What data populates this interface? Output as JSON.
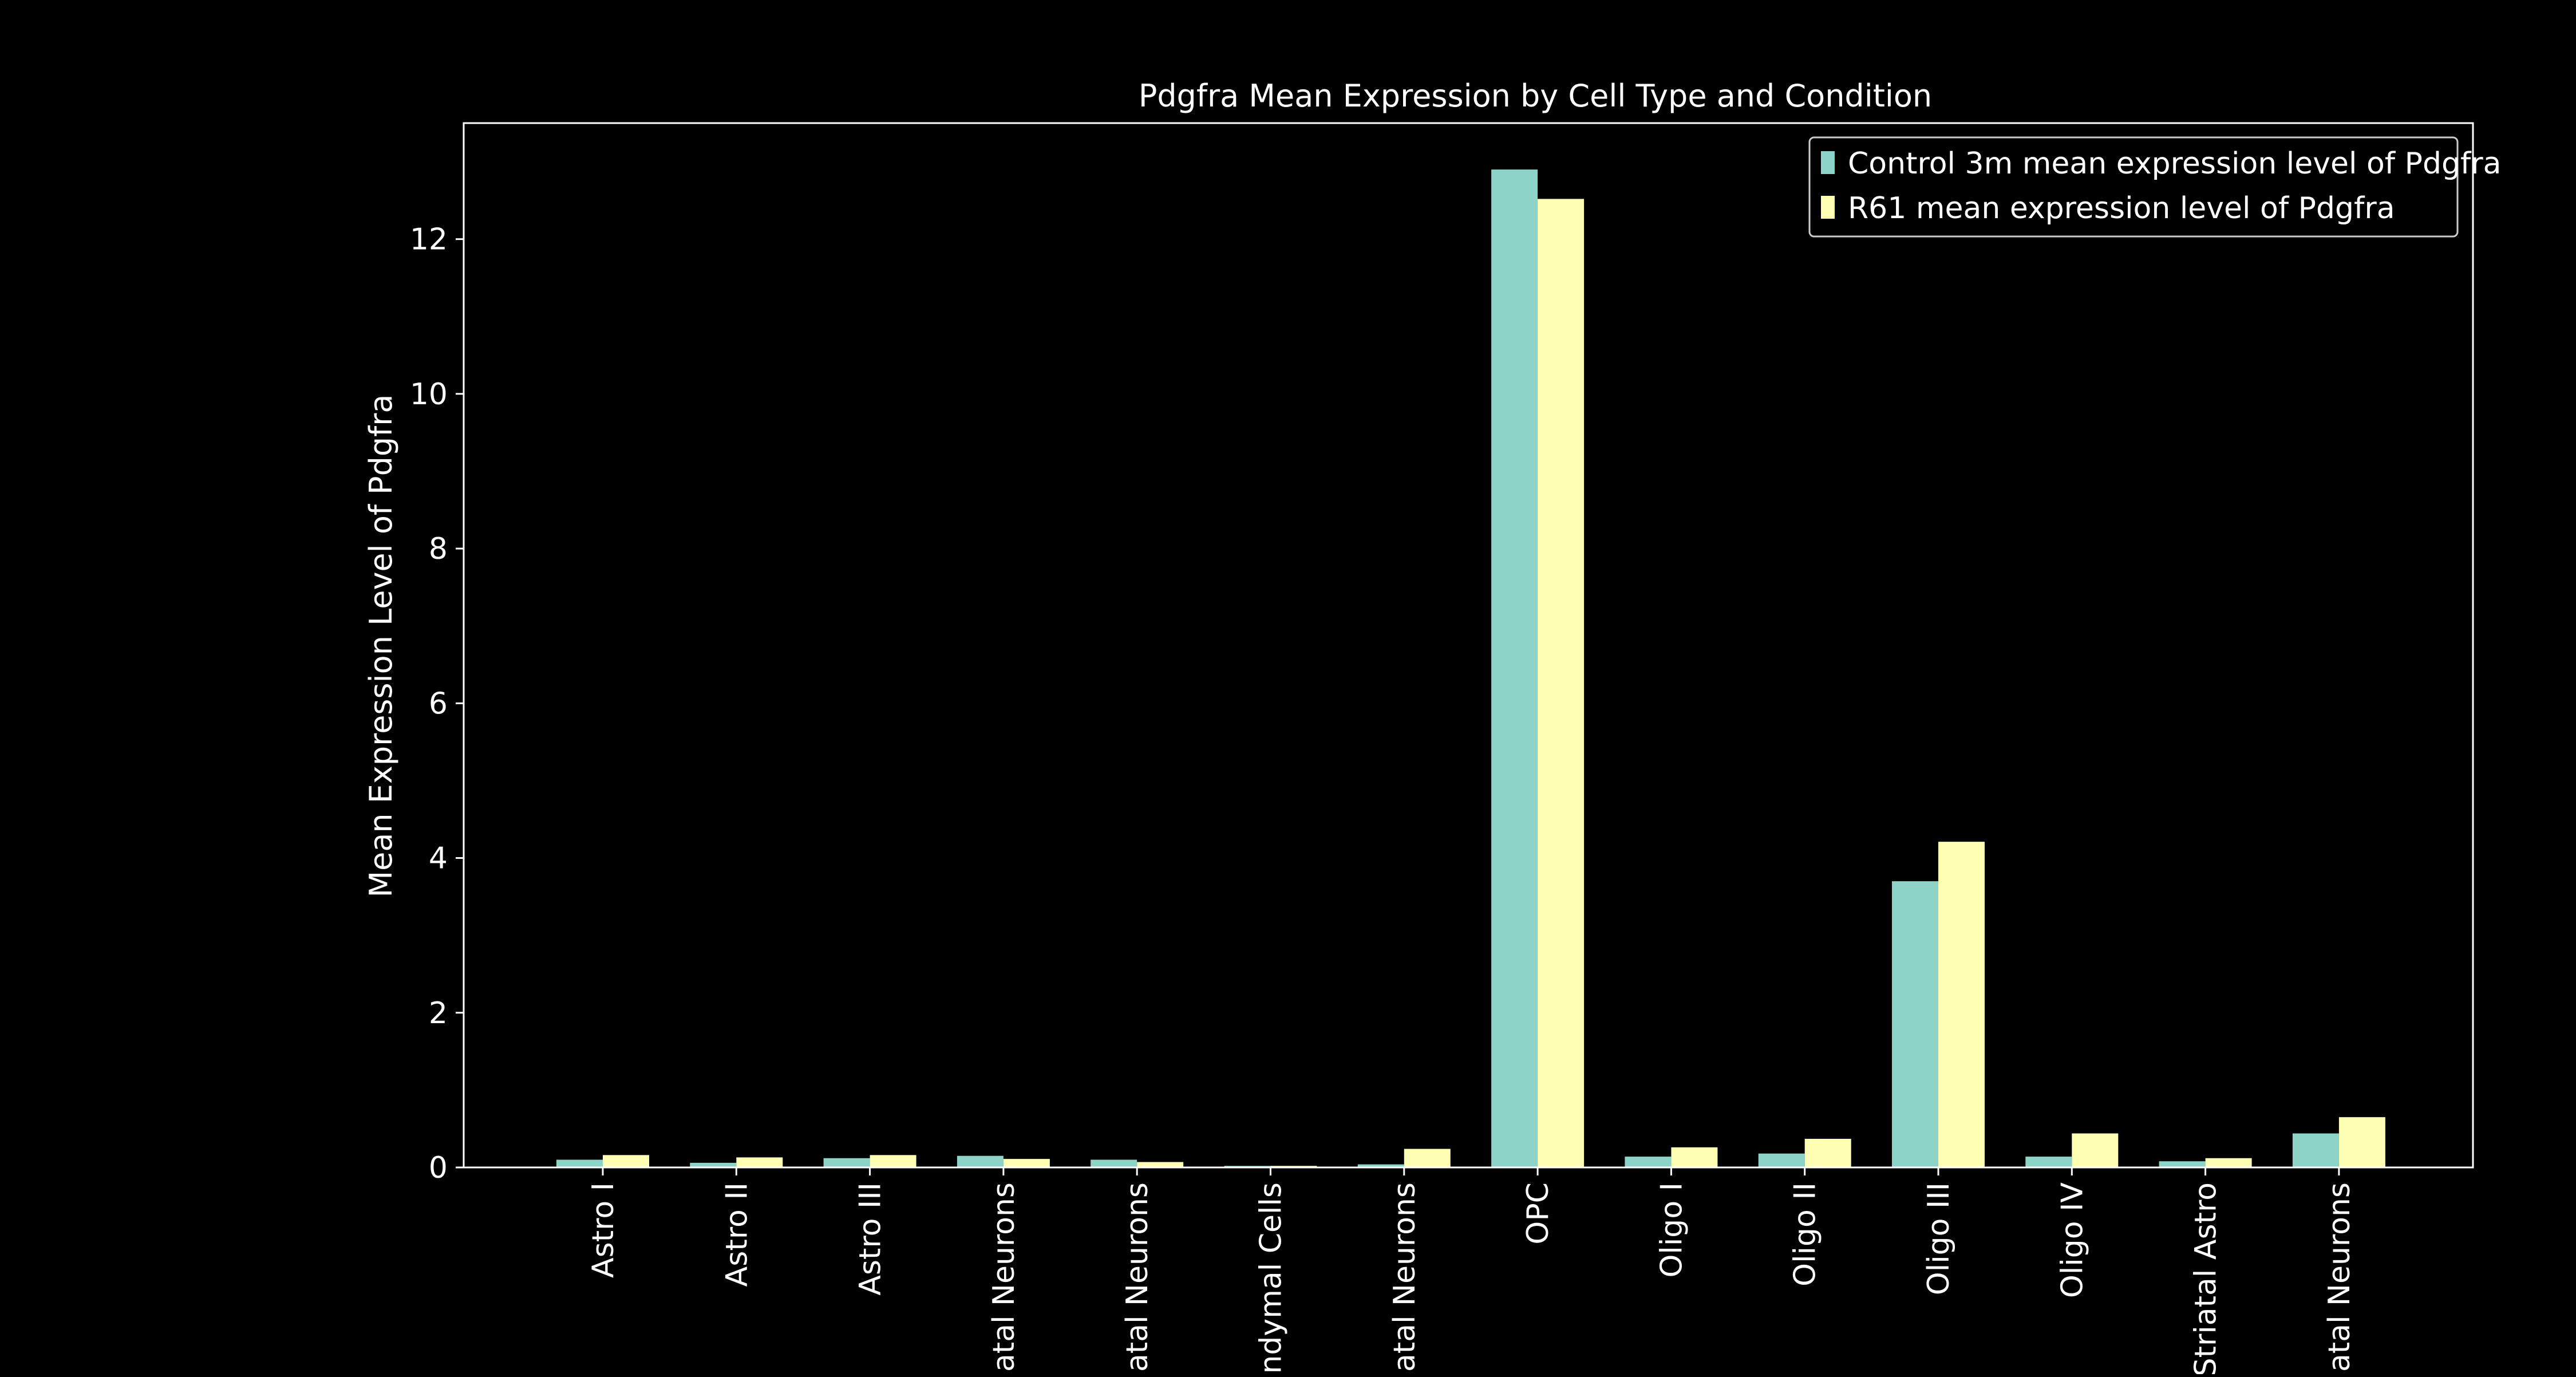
{
  "chart_data": {
    "type": "bar",
    "title": "Pdgfra Mean Expression by Cell Type and Condition",
    "xlabel": "",
    "ylabel": "Mean Expression Level of Pdgfra",
    "ylim": [
      0,
      13.5
    ],
    "yticks": [
      0,
      2,
      4,
      6,
      8,
      10,
      12
    ],
    "grid": false,
    "legend_position": "top-right",
    "categories": [
      "Astro I",
      "Astro II",
      "Astro III",
      "atal Neurons",
      "atal Neurons",
      "ndymal Cells",
      "atal Neurons",
      "OPC",
      "Oligo I",
      "Oligo II",
      "Oligo III",
      "Oligo IV",
      "Striatal Astro",
      "atal Neurons"
    ],
    "series": [
      {
        "name": "Control 3m mean expression level of Pdgfra",
        "color": "#8dd3c7",
        "values": [
          0.1,
          0.06,
          0.12,
          0.15,
          0.1,
          0.02,
          0.04,
          12.9,
          0.14,
          0.18,
          3.7,
          0.14,
          0.08,
          0.44
        ]
      },
      {
        "name": "R61 mean expression level of Pdgfra",
        "color": "#ffffb3",
        "values": [
          0.16,
          0.13,
          0.16,
          0.11,
          0.07,
          0.02,
          0.24,
          12.52,
          0.26,
          0.37,
          4.21,
          0.44,
          0.12,
          0.65
        ]
      }
    ]
  },
  "colors": {
    "background": "#000000",
    "axes": "#ffffff",
    "text": "#ffffff"
  }
}
